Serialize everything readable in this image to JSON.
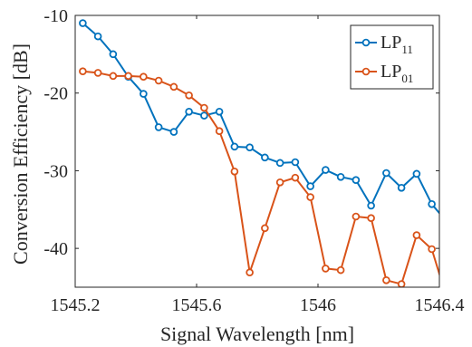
{
  "chart_data": {
    "type": "line",
    "title": "",
    "xlabel": "Signal Wavelength [nm]",
    "ylabel": "Conversion Efficiency [dB]",
    "xlim": [
      1545.2,
      1546.4
    ],
    "ylim": [
      -45,
      -10
    ],
    "xticks": [
      1545.2,
      1545.6,
      1546,
      1546.4
    ],
    "xtick_labels": [
      "1545.2",
      "1545.6",
      "1546",
      "1546.4"
    ],
    "yticks": [
      -40,
      -30,
      -20,
      -10
    ],
    "ytick_labels": [
      "-40",
      "-30",
      "-20",
      "-10"
    ],
    "grid": false,
    "legend_position": "top-right",
    "series": [
      {
        "name": "LP",
        "subscript": "11",
        "color": "#0072BD",
        "x": [
          1545.225,
          1545.275,
          1545.325,
          1545.375,
          1545.425,
          1545.475,
          1545.525,
          1545.575,
          1545.625,
          1545.675,
          1545.725,
          1545.775,
          1545.825,
          1545.875,
          1545.925,
          1545.975,
          1546.025,
          1546.075,
          1546.125,
          1546.175,
          1546.225,
          1546.275,
          1546.325,
          1546.375,
          1546.425
        ],
        "y": [
          -11.0,
          -12.7,
          -15.0,
          -17.9,
          -20.1,
          -24.4,
          -25.0,
          -22.4,
          -22.9,
          -22.4,
          -26.9,
          -27.0,
          -28.3,
          -29.0,
          -28.9,
          -32.0,
          -29.9,
          -30.8,
          -31.2,
          -34.5,
          -30.3,
          -32.2,
          -30.4,
          -34.3,
          -36.6
        ]
      },
      {
        "name": "LP",
        "subscript": "01",
        "color": "#D95319",
        "x": [
          1545.225,
          1545.275,
          1545.325,
          1545.375,
          1545.425,
          1545.475,
          1545.525,
          1545.575,
          1545.625,
          1545.675,
          1545.725,
          1545.775,
          1545.825,
          1545.875,
          1545.925,
          1545.975,
          1546.025,
          1546.075,
          1546.125,
          1546.175,
          1546.225,
          1546.275,
          1546.325,
          1546.375,
          1546.425
        ],
        "y": [
          -17.2,
          -17.4,
          -17.8,
          -17.8,
          -17.9,
          -18.4,
          -19.2,
          -20.3,
          -21.9,
          -24.9,
          -30.1,
          -43.1,
          -37.4,
          -31.5,
          -30.9,
          -33.4,
          -42.6,
          -42.8,
          -35.9,
          -36.1,
          -44.1,
          -44.6,
          -38.3,
          -40.1,
          -46.5
        ]
      }
    ]
  }
}
